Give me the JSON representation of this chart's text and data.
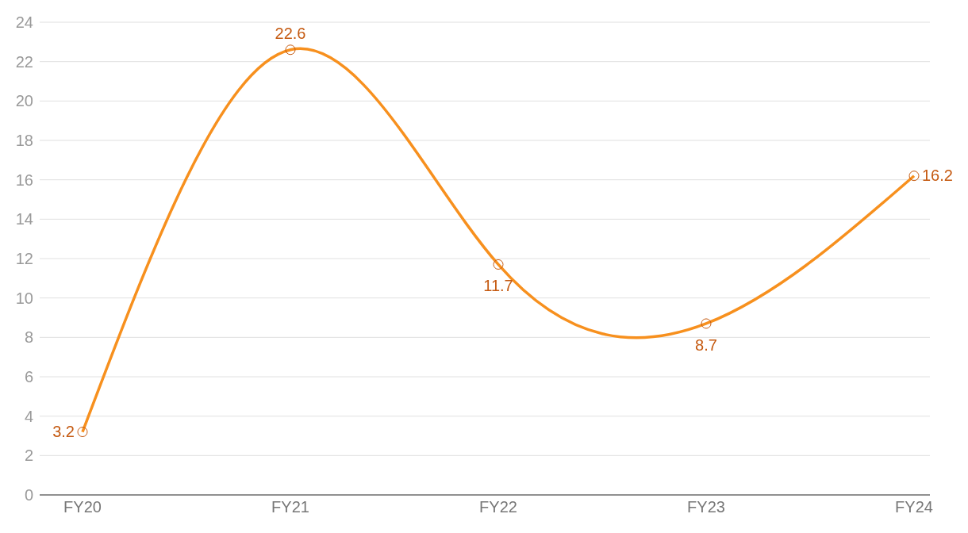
{
  "chart_data": {
    "type": "line",
    "categories": [
      "FY20",
      "FY21",
      "FY22",
      "FY23",
      "FY24"
    ],
    "series": [
      {
        "color": "#f7901e",
        "values": [
          3.2,
          22.6,
          11.7,
          8.7,
          16.2
        ]
      }
    ],
    "ylim": [
      0,
      24
    ],
    "yticks": [
      0,
      2,
      4,
      6,
      8,
      10,
      12,
      14,
      16,
      18,
      20,
      22,
      24
    ],
    "grid": "y",
    "marker": "circle",
    "line_style": "solid",
    "data_labels": true,
    "legend": false
  }
}
